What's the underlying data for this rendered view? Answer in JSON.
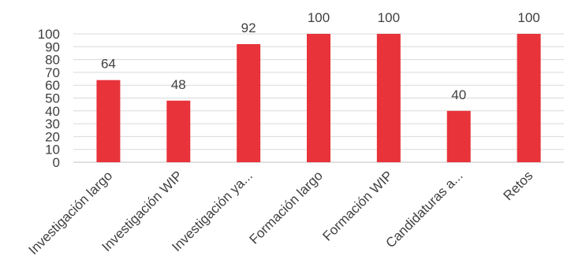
{
  "chart_data": {
    "type": "bar",
    "categories": [
      "Investigación largo",
      "Investigación WIP",
      "Investigación ya...",
      "Formación largo",
      "Formación WIP",
      "Candidaturas a...",
      "Retos"
    ],
    "values": [
      64,
      48,
      92,
      100,
      100,
      40,
      100
    ],
    "data_labels": [
      "64",
      "48",
      "92",
      "100",
      "100",
      "40",
      "100"
    ],
    "y_ticks": [
      "0",
      "10",
      "20",
      "30",
      "40",
      "50",
      "60",
      "70",
      "80",
      "90",
      "100"
    ],
    "ylim": [
      0,
      100
    ],
    "grid": true,
    "legend": "none",
    "bar_color": "#e8333a"
  }
}
